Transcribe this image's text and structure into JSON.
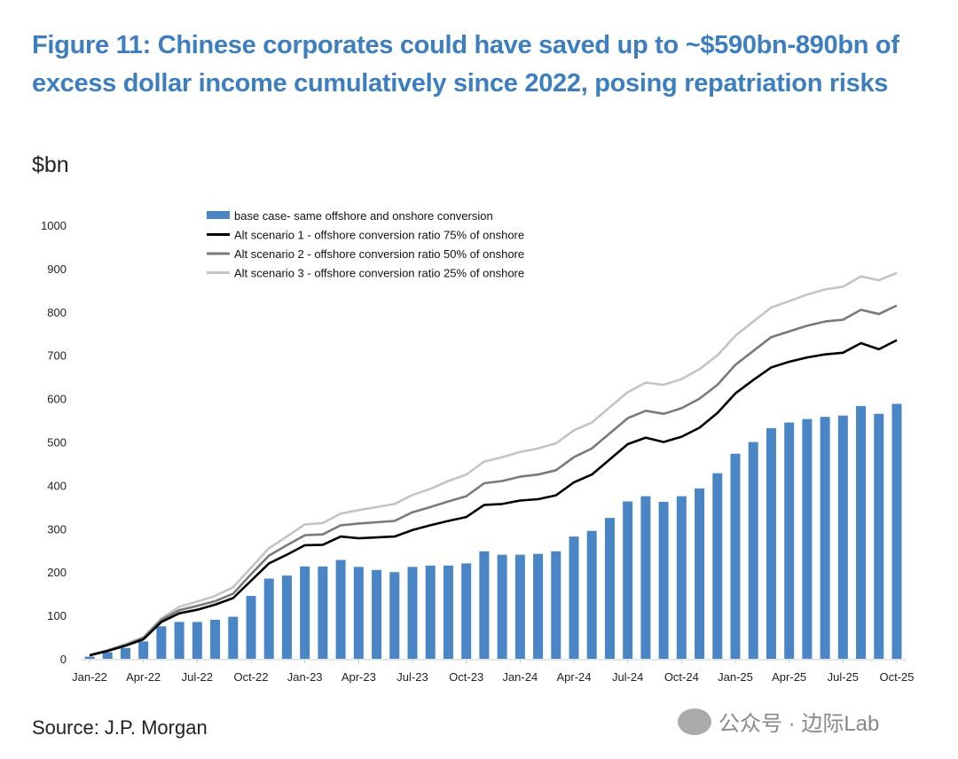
{
  "title": "Figure 11: Chinese corporates could have saved up to ~$590bn-890bn of excess dollar income cumulatively since 2022, posing repatriation risks",
  "unit_label": "$bn",
  "source": "Source: J.P. Morgan",
  "watermark": "公众号 · 边际Lab",
  "colors": {
    "title": "#3d7ebf",
    "bar": "#4a86c5",
    "alt1": "#000000",
    "alt2": "#7a7a7a",
    "alt3": "#c4c4c4"
  },
  "chart_data": {
    "type": "bar+line",
    "ylim": [
      0,
      1000
    ],
    "yticks": [
      0,
      100,
      200,
      300,
      400,
      500,
      600,
      700,
      800,
      900,
      1000
    ],
    "xtick_labels": [
      "Jan-22",
      "Apr-22",
      "Jul-22",
      "Oct-22",
      "Jan-23",
      "Apr-23",
      "Jul-23",
      "Oct-23",
      "Jan-24",
      "Apr-24",
      "Jul-24",
      "Oct-24",
      "Jan-25",
      "Apr-25",
      "Jul-25",
      "Oct-25"
    ],
    "x": [
      "Jan-22",
      "Feb-22",
      "Mar-22",
      "Apr-22",
      "May-22",
      "Jun-22",
      "Jul-22",
      "Aug-22",
      "Sep-22",
      "Oct-22",
      "Nov-22",
      "Dec-22",
      "Jan-23",
      "Feb-23",
      "Mar-23",
      "Apr-23",
      "May-23",
      "Jun-23",
      "Jul-23",
      "Aug-23",
      "Sep-23",
      "Oct-23",
      "Nov-23",
      "Dec-23",
      "Jan-24",
      "Feb-24",
      "Mar-24",
      "Apr-24",
      "May-24",
      "Jun-24",
      "Jul-24",
      "Aug-24",
      "Sep-24",
      "Oct-24",
      "Nov-24",
      "Dec-24",
      "Jan-25",
      "Feb-25",
      "Mar-25",
      "Apr-25",
      "May-25",
      "Jun-25",
      "Jul-25",
      "Aug-25",
      "Sep-25",
      "Oct-25"
    ],
    "legend_position": "top-left",
    "series": [
      {
        "name": "base case- same offshore and onshore conversion",
        "kind": "bar",
        "values": [
          5,
          15,
          25,
          40,
          75,
          85,
          85,
          90,
          97,
          145,
          185,
          192,
          213,
          213,
          228,
          212,
          205,
          200,
          212,
          215,
          215,
          220,
          248,
          240,
          240,
          242,
          248,
          282,
          295,
          325,
          363,
          375,
          362,
          375,
          393,
          428,
          473,
          500,
          532,
          545,
          553,
          558,
          561,
          583,
          565,
          588
        ]
      },
      {
        "name": "Alt scenario 1 - offshore conversion ratio 75% of onshore",
        "kind": "line",
        "values": [
          8,
          18,
          30,
          45,
          85,
          105,
          113,
          125,
          140,
          180,
          220,
          240,
          262,
          263,
          282,
          278,
          280,
          282,
          297,
          308,
          318,
          327,
          355,
          357,
          365,
          368,
          377,
          407,
          425,
          460,
          495,
          510,
          500,
          512,
          533,
          567,
          612,
          643,
          672,
          685,
          695,
          702,
          706,
          728,
          714,
          735
        ]
      },
      {
        "name": "Alt scenario 2 - offshore conversion ratio 50% of onshore",
        "kind": "line",
        "values": [
          8,
          19,
          32,
          48,
          90,
          112,
          122,
          133,
          150,
          195,
          238,
          262,
          285,
          287,
          308,
          312,
          315,
          318,
          338,
          350,
          363,
          375,
          405,
          410,
          420,
          425,
          435,
          465,
          485,
          520,
          555,
          572,
          565,
          578,
          600,
          632,
          678,
          710,
          742,
          755,
          768,
          778,
          782,
          805,
          795,
          815
        ]
      },
      {
        "name": "Alt scenario 3 - offshore conversion ratio 25% of onshore",
        "kind": "line",
        "values": [
          9,
          20,
          34,
          50,
          93,
          120,
          132,
          145,
          165,
          210,
          255,
          282,
          310,
          313,
          335,
          343,
          350,
          357,
          378,
          392,
          410,
          425,
          455,
          465,
          477,
          485,
          497,
          527,
          545,
          580,
          615,
          637,
          632,
          645,
          668,
          700,
          745,
          778,
          810,
          825,
          840,
          852,
          858,
          882,
          873,
          890
        ]
      }
    ]
  }
}
